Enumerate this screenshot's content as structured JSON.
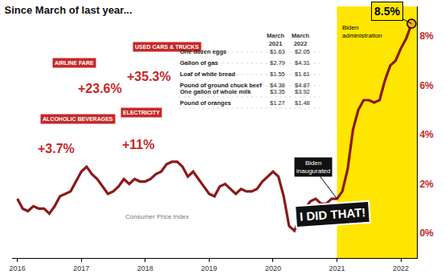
{
  "chart_data": {
    "type": "line",
    "title": "Since March of last year...",
    "categories": [
      "2016",
      null,
      null,
      null,
      null,
      null,
      null,
      null,
      null,
      null,
      null,
      null,
      "2017",
      null,
      null,
      null,
      null,
      null,
      null,
      null,
      null,
      null,
      null,
      null,
      "2018",
      null,
      null,
      null,
      null,
      null,
      null,
      null,
      null,
      null,
      null,
      null,
      "2019",
      null,
      null,
      null,
      null,
      null,
      null,
      null,
      null,
      null,
      null,
      null,
      "2020",
      null,
      null,
      null,
      null,
      null,
      null,
      null,
      null,
      null,
      null,
      null,
      "2021",
      null,
      null,
      null,
      null,
      null,
      null,
      null,
      null,
      null,
      null,
      null,
      "2022",
      null,
      null
    ],
    "series": [
      {
        "name": "Consumer Price Index",
        "color": "#8b1a1a",
        "values": [
          1.4,
          1.0,
          0.9,
          1.1,
          1.0,
          1.0,
          0.8,
          1.1,
          1.5,
          1.6,
          1.7,
          2.1,
          2.5,
          2.7,
          2.4,
          2.2,
          1.9,
          1.6,
          1.7,
          1.9,
          2.2,
          2.0,
          2.2,
          2.1,
          2.1,
          2.2,
          2.4,
          2.5,
          2.8,
          2.9,
          2.9,
          2.7,
          2.3,
          2.5,
          2.2,
          1.9,
          1.6,
          1.5,
          1.9,
          2.0,
          1.8,
          1.6,
          1.8,
          1.7,
          1.7,
          1.8,
          2.1,
          2.3,
          2.5,
          2.3,
          1.5,
          0.3,
          0.1,
          0.6,
          1.0,
          1.3,
          1.4,
          1.2,
          1.2,
          1.4,
          1.4,
          1.7,
          2.6,
          4.2,
          5.0,
          5.4,
          5.4,
          5.3,
          5.4,
          6.2,
          6.8,
          7.0,
          7.5,
          7.9,
          8.5
        ]
      }
    ],
    "ylim": [
      -1,
      9.2
    ],
    "yticks": [
      {
        "value": 0,
        "label": "0%"
      },
      {
        "value": 2,
        "label": "2%"
      },
      {
        "value": 4,
        "label": "4%"
      },
      {
        "value": 6,
        "label": "6%"
      },
      {
        "value": 8,
        "label": "8%"
      }
    ],
    "grid": false,
    "highlight": {
      "label": "Biden administration",
      "start": "2021"
    },
    "inauguration": {
      "text": "Biden inaugurated",
      "at": "2021"
    },
    "end_label": "8.5%",
    "callouts": [
      {
        "label": "AIRLINE FARE",
        "change": "+23.6%"
      },
      {
        "label": "USED CARS & TRUCKS",
        "change": "+35.3%"
      },
      {
        "label": "ALCOHOLIC BEVERAGES",
        "change": "+3.7%"
      },
      {
        "label": "ELECTRICITY",
        "change": "+11%"
      }
    ],
    "table": {
      "columns": [
        "March 2021",
        "March 2022"
      ],
      "rows": [
        [
          "One dozen eggs",
          "$1.63",
          "$2.05"
        ],
        [
          "Gallon of gas",
          "$2.79",
          "$4.31"
        ],
        [
          "Loaf of white bread",
          "$1.55",
          "$1.61"
        ],
        [
          "Pound of ground chuck beef",
          "$4.38",
          "$4.87"
        ],
        [
          "One gallon of whole milk",
          "$3.35",
          "$3.92"
        ],
        [
          "Pound of oranges",
          "$1.27",
          "$1.48"
        ]
      ]
    },
    "sticker": "I DID THAT!"
  }
}
